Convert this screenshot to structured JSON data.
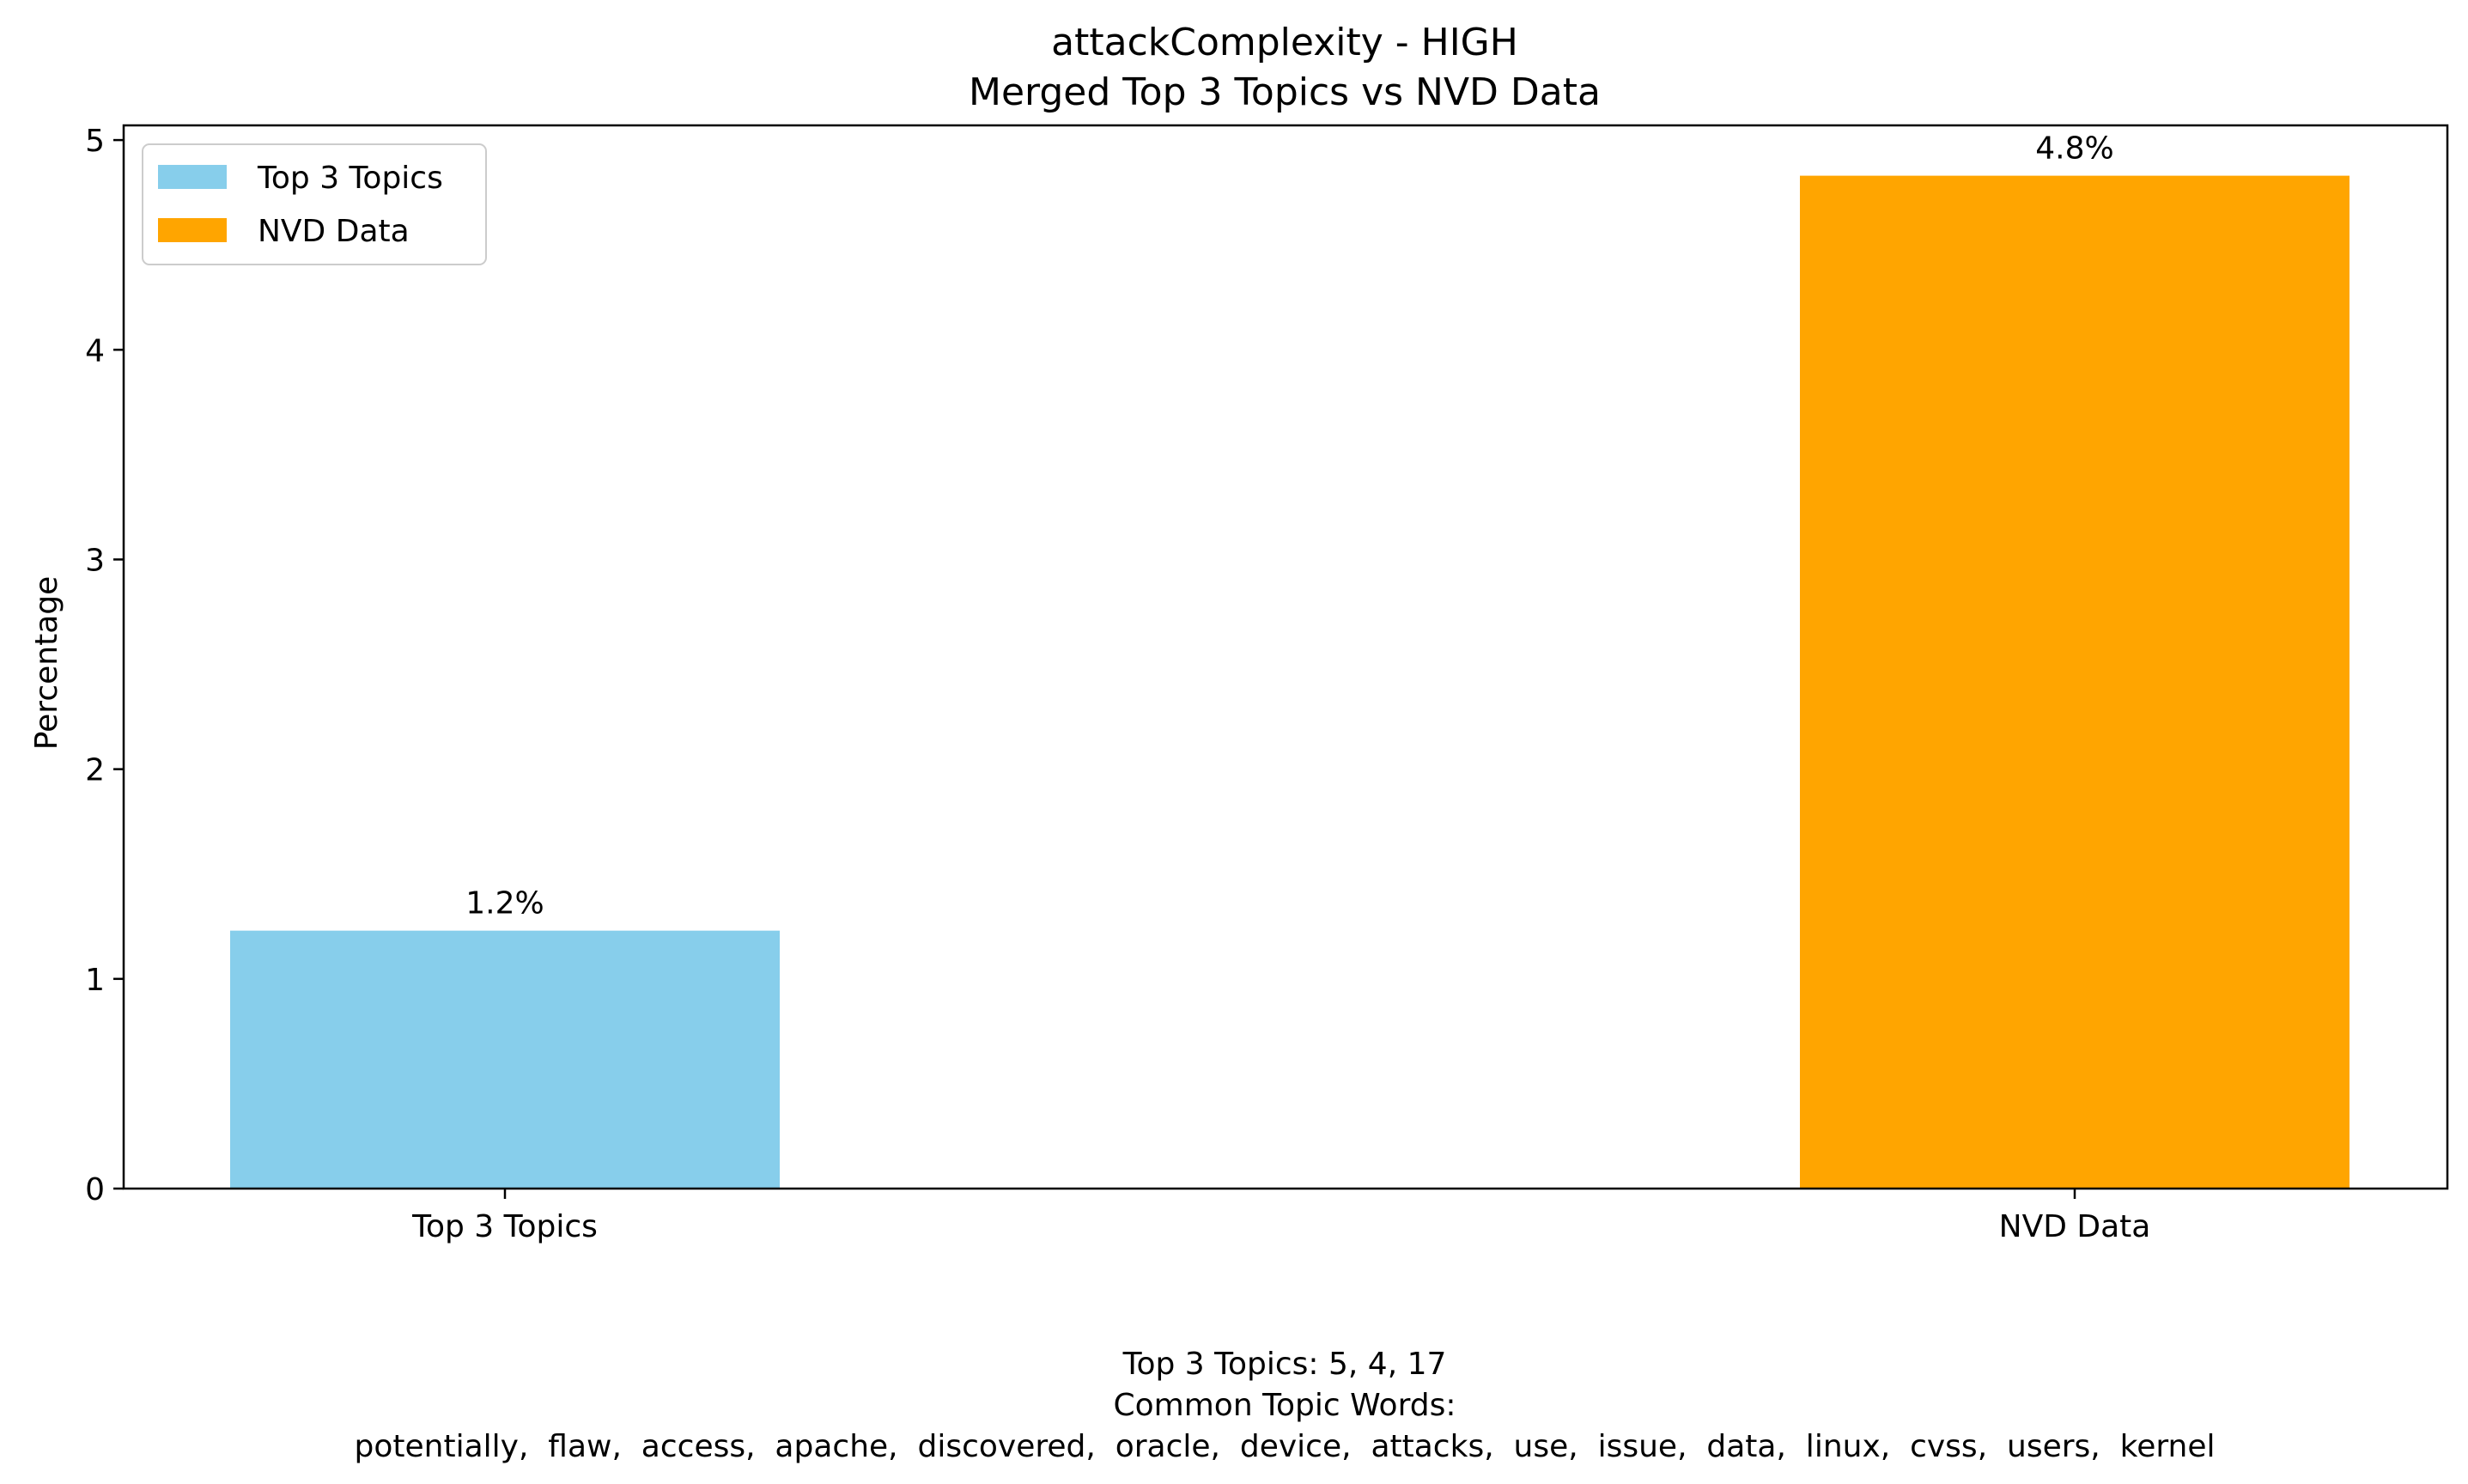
{
  "chart_data": {
    "type": "bar",
    "title": "attackComplexity - HIGH",
    "subtitle": "Merged Top 3 Topics vs NVD Data",
    "xlabel": "",
    "ylabel": "Percentage",
    "categories": [
      "Top 3 Topics",
      "NVD Data"
    ],
    "values": [
      1.23,
      4.83
    ],
    "bar_labels": [
      "1.2%",
      "4.8%"
    ],
    "colors": [
      "#87CEEB",
      "#FFA500"
    ],
    "ylim": [
      0,
      5.07
    ],
    "yticks": [
      "0",
      "1",
      "2",
      "3",
      "4",
      "5"
    ],
    "grid": false,
    "legend": {
      "position": "top-left",
      "entries": [
        {
          "label": "Top 3 Topics",
          "color": "#87CEEB"
        },
        {
          "label": "NVD Data",
          "color": "#FFA500"
        }
      ]
    },
    "footer": {
      "line1": "Top 3 Topics: 5, 4, 17",
      "line2": "Common Topic Words:",
      "line3": "potentially,  flaw,  access,  apache,  discovered,  oracle,  device,  attacks,  use,  issue,  data,  linux,  cvss,  users,  kernel"
    }
  }
}
